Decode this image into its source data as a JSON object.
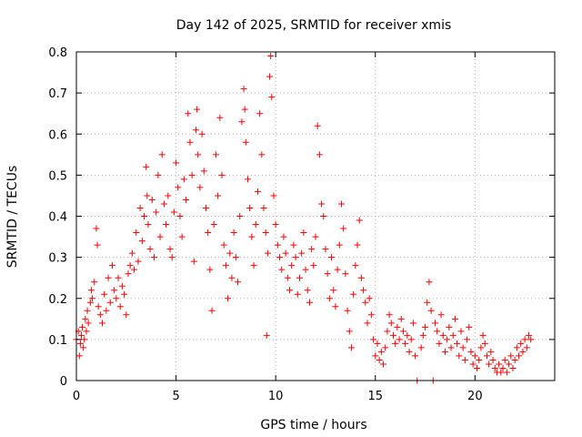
{
  "chart_data": {
    "type": "scatter",
    "title": "Day 142 of 2025, SRMTID for receiver xmis",
    "xlabel": "GPS time / hours",
    "ylabel": "SRMTID / TECUs",
    "xlim": [
      0,
      24
    ],
    "ylim": [
      0,
      0.8
    ],
    "grid": true,
    "marker": "+",
    "marker_color": "#ff0000",
    "x_ticks": [
      0,
      5,
      10,
      15,
      20
    ],
    "x_tick_labels": [
      "0",
      "5",
      "10",
      "15",
      "20"
    ],
    "y_ticks": [
      0,
      0.1,
      0.2,
      0.3,
      0.4,
      0.5,
      0.6,
      0.7,
      0.8
    ],
    "y_tick_labels": [
      "0",
      "0.1",
      "0.2",
      "0.3",
      "0.4",
      "0.5",
      "0.6",
      "0.7",
      "0.8"
    ],
    "series": [
      {
        "name": "SRMTID",
        "points": [
          [
            0.0,
            0.1
          ],
          [
            0.1,
            0.12
          ],
          [
            0.15,
            0.06
          ],
          [
            0.2,
            0.09
          ],
          [
            0.25,
            0.11
          ],
          [
            0.3,
            0.13
          ],
          [
            0.35,
            0.08
          ],
          [
            0.4,
            0.1
          ],
          [
            0.45,
            0.15
          ],
          [
            0.5,
            0.12
          ],
          [
            0.55,
            0.17
          ],
          [
            0.6,
            0.14
          ],
          [
            0.7,
            0.19
          ],
          [
            0.75,
            0.22
          ],
          [
            0.8,
            0.2
          ],
          [
            0.9,
            0.24
          ],
          [
            1.0,
            0.37
          ],
          [
            1.05,
            0.33
          ],
          [
            1.1,
            0.18
          ],
          [
            1.2,
            0.16
          ],
          [
            1.3,
            0.14
          ],
          [
            1.4,
            0.21
          ],
          [
            1.5,
            0.17
          ],
          [
            1.6,
            0.25
          ],
          [
            1.7,
            0.19
          ],
          [
            1.8,
            0.28
          ],
          [
            1.9,
            0.22
          ],
          [
            2.0,
            0.2
          ],
          [
            2.1,
            0.25
          ],
          [
            2.2,
            0.18
          ],
          [
            2.3,
            0.23
          ],
          [
            2.4,
            0.21
          ],
          [
            2.5,
            0.16
          ],
          [
            2.6,
            0.26
          ],
          [
            2.7,
            0.28
          ],
          [
            2.8,
            0.31
          ],
          [
            2.9,
            0.27
          ],
          [
            3.0,
            0.36
          ],
          [
            3.1,
            0.29
          ],
          [
            3.2,
            0.42
          ],
          [
            3.3,
            0.34
          ],
          [
            3.4,
            0.4
          ],
          [
            3.5,
            0.52
          ],
          [
            3.55,
            0.45
          ],
          [
            3.6,
            0.38
          ],
          [
            3.7,
            0.32
          ],
          [
            3.8,
            0.44
          ],
          [
            3.9,
            0.3
          ],
          [
            4.0,
            0.41
          ],
          [
            4.1,
            0.5
          ],
          [
            4.2,
            0.35
          ],
          [
            4.3,
            0.55
          ],
          [
            4.4,
            0.43
          ],
          [
            4.5,
            0.38
          ],
          [
            4.6,
            0.45
          ],
          [
            4.7,
            0.32
          ],
          [
            4.8,
            0.3
          ],
          [
            4.9,
            0.41
          ],
          [
            5.0,
            0.53
          ],
          [
            5.1,
            0.47
          ],
          [
            5.2,
            0.4
          ],
          [
            5.3,
            0.35
          ],
          [
            5.4,
            0.49
          ],
          [
            5.5,
            0.44
          ],
          [
            5.6,
            0.65
          ],
          [
            5.7,
            0.58
          ],
          [
            5.8,
            0.5
          ],
          [
            5.9,
            0.29
          ],
          [
            6.0,
            0.61
          ],
          [
            6.05,
            0.66
          ],
          [
            6.1,
            0.55
          ],
          [
            6.2,
            0.47
          ],
          [
            6.3,
            0.6
          ],
          [
            6.4,
            0.51
          ],
          [
            6.5,
            0.42
          ],
          [
            6.6,
            0.36
          ],
          [
            6.7,
            0.27
          ],
          [
            6.8,
            0.17
          ],
          [
            6.9,
            0.38
          ],
          [
            7.0,
            0.55
          ],
          [
            7.1,
            0.45
          ],
          [
            7.2,
            0.64
          ],
          [
            7.3,
            0.5
          ],
          [
            7.4,
            0.33
          ],
          [
            7.5,
            0.28
          ],
          [
            7.6,
            0.2
          ],
          [
            7.7,
            0.31
          ],
          [
            7.8,
            0.25
          ],
          [
            7.9,
            0.36
          ],
          [
            8.0,
            0.3
          ],
          [
            8.1,
            0.24
          ],
          [
            8.2,
            0.4
          ],
          [
            8.3,
            0.63
          ],
          [
            8.4,
            0.71
          ],
          [
            8.45,
            0.66
          ],
          [
            8.5,
            0.58
          ],
          [
            8.6,
            0.49
          ],
          [
            8.7,
            0.42
          ],
          [
            8.8,
            0.35
          ],
          [
            8.9,
            0.28
          ],
          [
            9.0,
            0.38
          ],
          [
            9.1,
            0.46
          ],
          [
            9.2,
            0.65
          ],
          [
            9.3,
            0.55
          ],
          [
            9.4,
            0.42
          ],
          [
            9.5,
            0.36
          ],
          [
            9.55,
            0.11
          ],
          [
            9.6,
            0.31
          ],
          [
            9.7,
            0.74
          ],
          [
            9.75,
            0.79
          ],
          [
            9.8,
            0.69
          ],
          [
            9.9,
            0.45
          ],
          [
            10.0,
            0.38
          ],
          [
            10.1,
            0.33
          ],
          [
            10.2,
            0.3
          ],
          [
            10.3,
            0.27
          ],
          [
            10.4,
            0.35
          ],
          [
            10.5,
            0.31
          ],
          [
            10.6,
            0.25
          ],
          [
            10.7,
            0.22
          ],
          [
            10.8,
            0.28
          ],
          [
            10.9,
            0.33
          ],
          [
            11.0,
            0.3
          ],
          [
            11.1,
            0.21
          ],
          [
            11.2,
            0.25
          ],
          [
            11.3,
            0.31
          ],
          [
            11.4,
            0.36
          ],
          [
            11.5,
            0.27
          ],
          [
            11.6,
            0.22
          ],
          [
            11.7,
            0.19
          ],
          [
            11.8,
            0.32
          ],
          [
            11.9,
            0.28
          ],
          [
            12.0,
            0.35
          ],
          [
            12.1,
            0.62
          ],
          [
            12.2,
            0.55
          ],
          [
            12.3,
            0.43
          ],
          [
            12.4,
            0.4
          ],
          [
            12.5,
            0.32
          ],
          [
            12.6,
            0.26
          ],
          [
            12.7,
            0.2
          ],
          [
            12.8,
            0.3
          ],
          [
            12.9,
            0.22
          ],
          [
            13.0,
            0.18
          ],
          [
            13.1,
            0.27
          ],
          [
            13.2,
            0.33
          ],
          [
            13.3,
            0.43
          ],
          [
            13.4,
            0.37
          ],
          [
            13.5,
            0.26
          ],
          [
            13.6,
            0.17
          ],
          [
            13.7,
            0.12
          ],
          [
            13.8,
            0.08
          ],
          [
            13.9,
            0.21
          ],
          [
            14.0,
            0.28
          ],
          [
            14.1,
            0.33
          ],
          [
            14.2,
            0.39
          ],
          [
            14.3,
            0.25
          ],
          [
            14.4,
            0.22
          ],
          [
            14.5,
            0.19
          ],
          [
            14.6,
            0.14
          ],
          [
            14.7,
            0.2
          ],
          [
            14.8,
            0.16
          ],
          [
            14.9,
            0.1
          ],
          [
            15.0,
            0.06
          ],
          [
            15.1,
            0.09
          ],
          [
            15.2,
            0.05
          ],
          [
            15.3,
            0.07
          ],
          [
            15.4,
            0.04
          ],
          [
            15.5,
            0.08
          ],
          [
            15.6,
            0.12
          ],
          [
            15.7,
            0.16
          ],
          [
            15.8,
            0.14
          ],
          [
            15.9,
            0.11
          ],
          [
            16.0,
            0.09
          ],
          [
            16.1,
            0.13
          ],
          [
            16.2,
            0.1
          ],
          [
            16.3,
            0.15
          ],
          [
            16.4,
            0.12
          ],
          [
            16.5,
            0.09
          ],
          [
            16.6,
            0.11
          ],
          [
            16.7,
            0.07
          ],
          [
            16.8,
            0.1
          ],
          [
            16.9,
            0.14
          ],
          [
            17.0,
            0.06
          ],
          [
            17.1,
            0.0
          ],
          [
            17.3,
            0.08
          ],
          [
            17.4,
            0.11
          ],
          [
            17.5,
            0.13
          ],
          [
            17.6,
            0.19
          ],
          [
            17.7,
            0.24
          ],
          [
            17.8,
            0.17
          ],
          [
            17.9,
            0.0
          ],
          [
            18.0,
            0.14
          ],
          [
            18.1,
            0.12
          ],
          [
            18.2,
            0.09
          ],
          [
            18.3,
            0.16
          ],
          [
            18.4,
            0.11
          ],
          [
            18.5,
            0.07
          ],
          [
            18.6,
            0.1
          ],
          [
            18.7,
            0.13
          ],
          [
            18.8,
            0.08
          ],
          [
            18.9,
            0.11
          ],
          [
            19.0,
            0.15
          ],
          [
            19.1,
            0.09
          ],
          [
            19.2,
            0.06
          ],
          [
            19.3,
            0.12
          ],
          [
            19.4,
            0.08
          ],
          [
            19.5,
            0.05
          ],
          [
            19.6,
            0.1
          ],
          [
            19.7,
            0.13
          ],
          [
            19.8,
            0.07
          ],
          [
            19.9,
            0.04
          ],
          [
            20.0,
            0.06
          ],
          [
            20.1,
            0.03
          ],
          [
            20.2,
            0.05
          ],
          [
            20.3,
            0.08
          ],
          [
            20.4,
            0.11
          ],
          [
            20.5,
            0.09
          ],
          [
            20.6,
            0.06
          ],
          [
            20.7,
            0.04
          ],
          [
            20.8,
            0.07
          ],
          [
            20.9,
            0.05
          ],
          [
            21.0,
            0.03
          ],
          [
            21.1,
            0.02
          ],
          [
            21.2,
            0.04
          ],
          [
            21.3,
            0.02
          ],
          [
            21.4,
            0.03
          ],
          [
            21.5,
            0.05
          ],
          [
            21.6,
            0.02
          ],
          [
            21.7,
            0.04
          ],
          [
            21.8,
            0.06
          ],
          [
            21.9,
            0.03
          ],
          [
            22.0,
            0.05
          ],
          [
            22.1,
            0.08
          ],
          [
            22.2,
            0.06
          ],
          [
            22.3,
            0.09
          ],
          [
            22.4,
            0.07
          ],
          [
            22.5,
            0.1
          ],
          [
            22.6,
            0.08
          ],
          [
            22.7,
            0.11
          ],
          [
            22.8,
            0.1
          ]
        ]
      }
    ]
  }
}
